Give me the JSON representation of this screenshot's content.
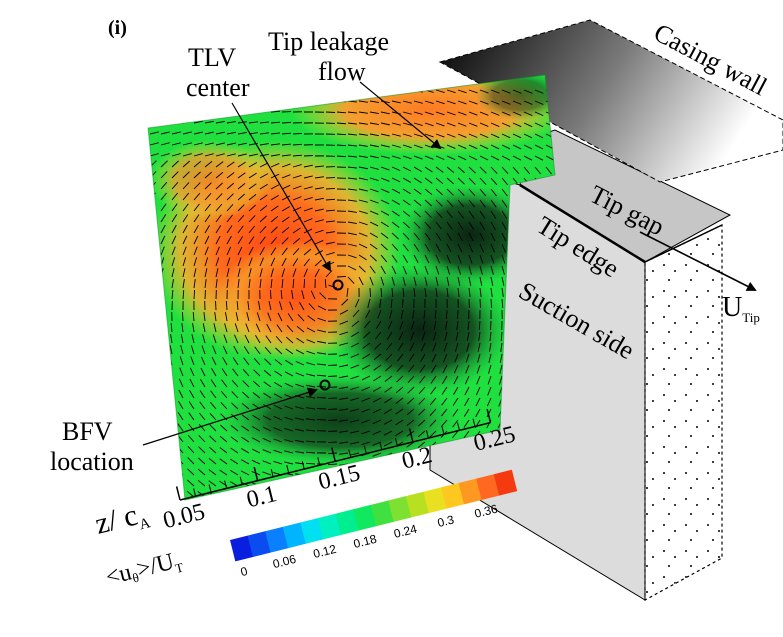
{
  "panel_label": "(i)",
  "annotations": {
    "tlv_line1": "TLV",
    "tlv_line2": "center",
    "tip_leakage_line1": "Tip leakage",
    "tip_leakage_line2": "flow",
    "bfv_line1": "BFV",
    "bfv_line2": "location",
    "casing_wall": "Casing wall",
    "tip_gap": "Tip gap",
    "tip_edge": "Tip edge",
    "suction_side": "Suction side",
    "u_tip_main": "U",
    "u_tip_sub": "Tip"
  },
  "axis": {
    "label_main": "z/ c",
    "label_sub": "A",
    "ticks": [
      "0.05",
      "0.1",
      "0.15",
      "0.2",
      "0.25"
    ]
  },
  "colorbar": {
    "label_lt": "<u",
    "label_theta": "θ",
    "label_gt": ">/U",
    "label_sub": "T",
    "ticks": [
      "0",
      "0.06",
      "0.12",
      "0.18",
      "0.24",
      "0.3",
      "0.36"
    ],
    "colors": [
      "#0a1ee0",
      "#0a4cf0",
      "#0a80ff",
      "#00b4ff",
      "#00e0f0",
      "#00f0c0",
      "#00ee90",
      "#10e860",
      "#40e040",
      "#7ee030",
      "#b8e020",
      "#e8e020",
      "#ffc820",
      "#ff9820",
      "#ff6820",
      "#f53a10"
    ]
  },
  "colors": {
    "field_background": "#20e040",
    "hot_core": "#ff5a1a",
    "warm": "#f0b030",
    "dark_band": "#0b3a1a",
    "plate": "#dadada"
  }
}
